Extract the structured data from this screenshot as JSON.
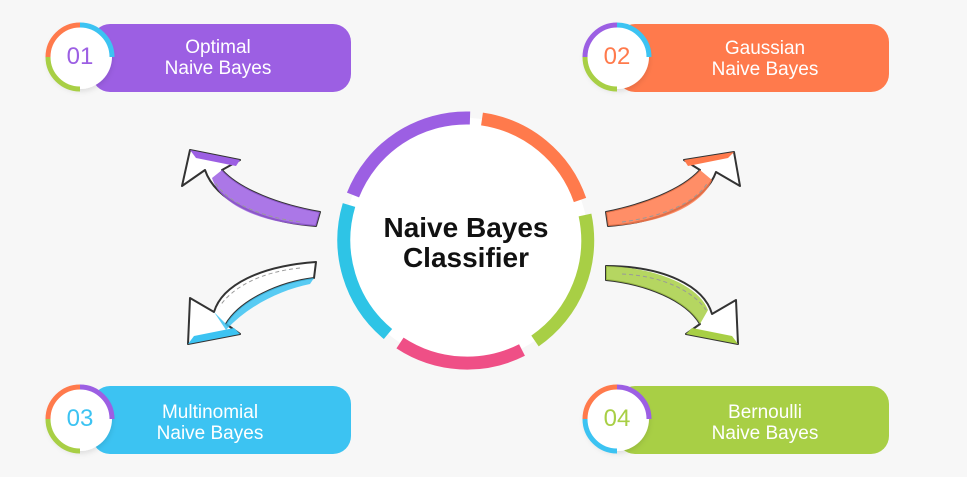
{
  "center": {
    "title_line1": "Naive Bayes",
    "title_line2": "Classifier"
  },
  "items": [
    {
      "number": "01",
      "line1": "Optimal",
      "line2": "Naive Bayes",
      "color": "#9c5fe3"
    },
    {
      "number": "02",
      "line1": "Gaussian",
      "line2": "Naive Bayes",
      "color": "#ff7a4c"
    },
    {
      "number": "03",
      "line1": "Multinomial",
      "line2": "Naive Bayes",
      "color": "#3cc3f2"
    },
    {
      "number": "04",
      "line1": "Bernoulli",
      "line2": "Naive Bayes",
      "color": "#a8cf45"
    }
  ],
  "ring_colors": {
    "purple": "#9c5fe3",
    "orange": "#ff7a4c",
    "green": "#a8cf45",
    "pink": "#ef4f86",
    "blue": "#2ec4e6"
  }
}
